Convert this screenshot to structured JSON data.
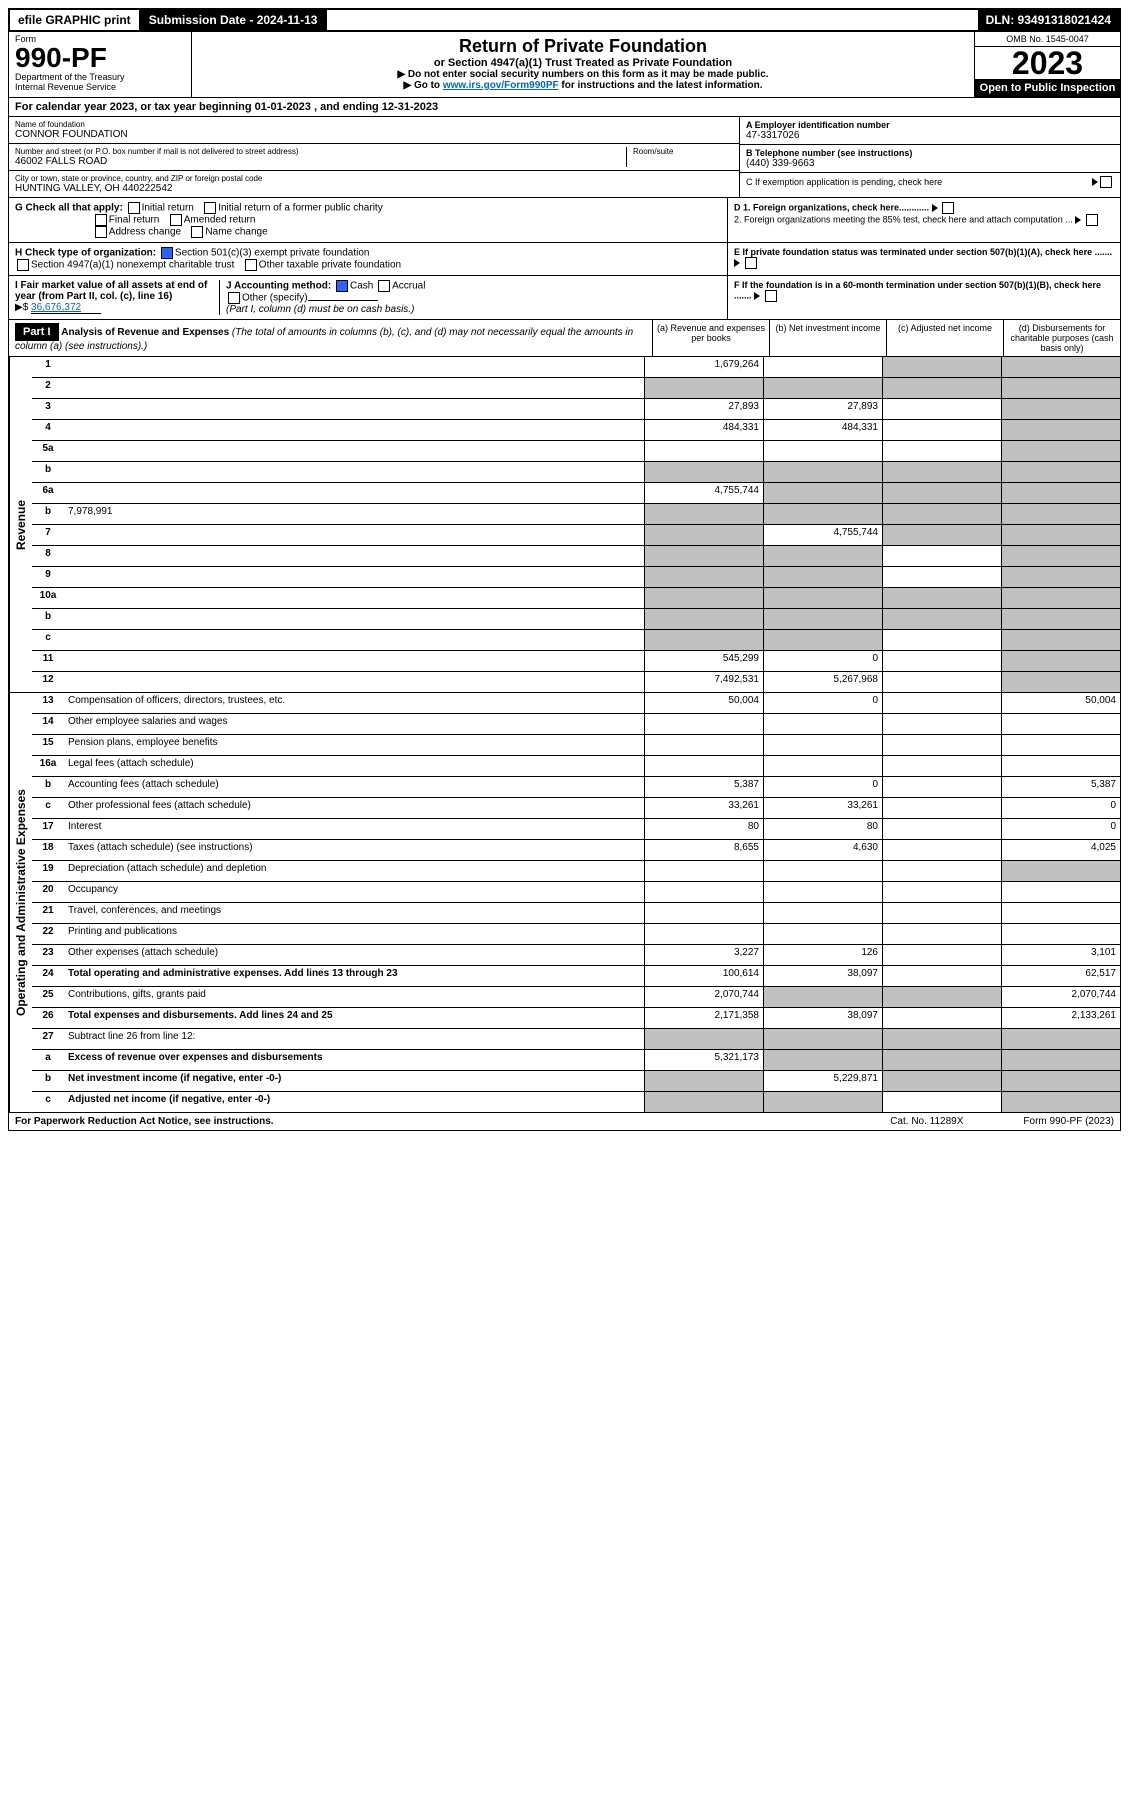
{
  "top": {
    "efile": "efile GRAPHIC print",
    "submission": "Submission Date - 2024-11-13",
    "dln": "DLN: 93491318021424"
  },
  "header": {
    "form_label": "Form",
    "form_no": "990-PF",
    "dept": "Department of the Treasury",
    "irs": "Internal Revenue Service",
    "title": "Return of Private Foundation",
    "subtitle": "or Section 4947(a)(1) Trust Treated as Private Foundation",
    "instr1": "▶ Do not enter social security numbers on this form as it may be made public.",
    "instr2_pre": "▶ Go to ",
    "instr2_link": "www.irs.gov/Form990PF",
    "instr2_post": " for instructions and the latest information.",
    "omb": "OMB No. 1545-0047",
    "year": "2023",
    "open": "Open to Public Inspection"
  },
  "period": "For calendar year 2023, or tax year beginning 01-01-2023           , and ending 12-31-2023",
  "entity": {
    "name_label": "Name of foundation",
    "name": "CONNOR FOUNDATION",
    "addr_label": "Number and street (or P.O. box number if mail is not delivered to street address)",
    "addr": "46002 FALLS ROAD",
    "room_label": "Room/suite",
    "city_label": "City or town, state or province, country, and ZIP or foreign postal code",
    "city": "HUNTING VALLEY, OH  440222542",
    "a_label": "A Employer identification number",
    "a_val": "47-3317026",
    "b_label": "B Telephone number (see instructions)",
    "b_val": "(440) 339-9663",
    "c_label": "C If exemption application is pending, check here"
  },
  "checks": {
    "g_label": "G Check all that apply:",
    "g_opts": [
      "Initial return",
      "Initial return of a former public charity",
      "Final return",
      "Amended return",
      "Address change",
      "Name change"
    ],
    "h_label": "H Check type of organization:",
    "h1": "Section 501(c)(3) exempt private foundation",
    "h2": "Section 4947(a)(1) nonexempt charitable trust",
    "h3": "Other taxable private foundation",
    "i_label": "I Fair market value of all assets at end of year (from Part II, col. (c), line 16)",
    "i_val": "36,676,372",
    "j_label": "J Accounting method:",
    "j1": "Cash",
    "j2": "Accrual",
    "j3": "Other (specify)",
    "j_note": "(Part I, column (d) must be on cash basis.)",
    "d1": "D 1. Foreign organizations, check here............",
    "d2": "2. Foreign organizations meeting the 85% test, check here and attach computation ...",
    "e": "E  If private foundation status was terminated under section 507(b)(1)(A), check here .......",
    "f": "F  If the foundation is in a 60-month termination under section 507(b)(1)(B), check here .......",
    "i_prefix": "▶$  "
  },
  "part1": {
    "label": "Part I",
    "title": "Analysis of Revenue and Expenses",
    "title_note": " (The total of amounts in columns (b), (c), and (d) may not necessarily equal the amounts in column (a) (see instructions).)",
    "col_a": "(a)   Revenue and expenses per books",
    "col_b": "(b)   Net investment income",
    "col_c": "(c)   Adjusted net income",
    "col_d": "(d)   Disbursements for charitable purposes (cash basis only)"
  },
  "sections": {
    "revenue": "Revenue",
    "expenses": "Operating and Administrative Expenses"
  },
  "lines": [
    {
      "n": "1",
      "d": "",
      "a": "1,679,264",
      "b": "",
      "c": "",
      "shaded": [
        "c",
        "d"
      ]
    },
    {
      "n": "2",
      "d": "",
      "a": "",
      "b": "",
      "c": "",
      "shaded": [
        "a",
        "b",
        "c",
        "d"
      ]
    },
    {
      "n": "3",
      "d": "",
      "a": "27,893",
      "b": "27,893",
      "c": "",
      "shaded": [
        "d"
      ]
    },
    {
      "n": "4",
      "d": "",
      "a": "484,331",
      "b": "484,331",
      "c": "",
      "shaded": [
        "d"
      ]
    },
    {
      "n": "5a",
      "d": "",
      "a": "",
      "b": "",
      "c": "",
      "shaded": [
        "d"
      ]
    },
    {
      "n": "b",
      "d": "",
      "a": "",
      "b": "",
      "c": "",
      "shaded": [
        "a",
        "b",
        "c",
        "d"
      ],
      "inline": true
    },
    {
      "n": "6a",
      "d": "",
      "a": "4,755,744",
      "b": "",
      "c": "",
      "shaded": [
        "b",
        "c",
        "d"
      ]
    },
    {
      "n": "b",
      "d": "",
      "inline_val": "7,978,991",
      "a": "",
      "b": "",
      "c": "",
      "shaded": [
        "a",
        "b",
        "c",
        "d"
      ]
    },
    {
      "n": "7",
      "d": "",
      "a": "",
      "b": "4,755,744",
      "c": "",
      "shaded": [
        "a",
        "c",
        "d"
      ]
    },
    {
      "n": "8",
      "d": "",
      "a": "",
      "b": "",
      "c": "",
      "shaded": [
        "a",
        "b",
        "d"
      ]
    },
    {
      "n": "9",
      "d": "",
      "a": "",
      "b": "",
      "c": "",
      "shaded": [
        "a",
        "b",
        "d"
      ]
    },
    {
      "n": "10a",
      "d": "",
      "a": "",
      "b": "",
      "c": "",
      "shaded": [
        "a",
        "b",
        "c",
        "d"
      ],
      "inline": true
    },
    {
      "n": "b",
      "d": "",
      "a": "",
      "b": "",
      "c": "",
      "shaded": [
        "a",
        "b",
        "c",
        "d"
      ],
      "inline": true
    },
    {
      "n": "c",
      "d": "",
      "a": "",
      "b": "",
      "c": "",
      "shaded": [
        "a",
        "b",
        "d"
      ]
    },
    {
      "n": "11",
      "d": "",
      "a": "545,299",
      "b": "0",
      "c": "",
      "shaded": [
        "d"
      ]
    },
    {
      "n": "12",
      "d": "",
      "a": "7,492,531",
      "b": "5,267,968",
      "c": "",
      "bold": true,
      "shaded": [
        "d"
      ]
    }
  ],
  "exp_lines": [
    {
      "n": "13",
      "d": "Compensation of officers, directors, trustees, etc.",
      "a": "50,004",
      "b": "0",
      "c": "",
      "dd": "50,004"
    },
    {
      "n": "14",
      "d": "Other employee salaries and wages",
      "a": "",
      "b": "",
      "c": "",
      "dd": ""
    },
    {
      "n": "15",
      "d": "Pension plans, employee benefits",
      "a": "",
      "b": "",
      "c": "",
      "dd": ""
    },
    {
      "n": "16a",
      "d": "Legal fees (attach schedule)",
      "a": "",
      "b": "",
      "c": "",
      "dd": ""
    },
    {
      "n": "b",
      "d": "Accounting fees (attach schedule)",
      "a": "5,387",
      "b": "0",
      "c": "",
      "dd": "5,387"
    },
    {
      "n": "c",
      "d": "Other professional fees (attach schedule)",
      "a": "33,261",
      "b": "33,261",
      "c": "",
      "dd": "0"
    },
    {
      "n": "17",
      "d": "Interest",
      "a": "80",
      "b": "80",
      "c": "",
      "dd": "0"
    },
    {
      "n": "18",
      "d": "Taxes (attach schedule) (see instructions)",
      "a": "8,655",
      "b": "4,630",
      "c": "",
      "dd": "4,025"
    },
    {
      "n": "19",
      "d": "Depreciation (attach schedule) and depletion",
      "a": "",
      "b": "",
      "c": "",
      "dd": "",
      "shaded": [
        "dd"
      ]
    },
    {
      "n": "20",
      "d": "Occupancy",
      "a": "",
      "b": "",
      "c": "",
      "dd": ""
    },
    {
      "n": "21",
      "d": "Travel, conferences, and meetings",
      "a": "",
      "b": "",
      "c": "",
      "dd": ""
    },
    {
      "n": "22",
      "d": "Printing and publications",
      "a": "",
      "b": "",
      "c": "",
      "dd": ""
    },
    {
      "n": "23",
      "d": "Other expenses (attach schedule)",
      "a": "3,227",
      "b": "126",
      "c": "",
      "dd": "3,101"
    },
    {
      "n": "24",
      "d": "Total operating and administrative expenses. Add lines 13 through 23",
      "a": "100,614",
      "b": "38,097",
      "c": "",
      "dd": "62,517",
      "bold": true
    },
    {
      "n": "25",
      "d": "Contributions, gifts, grants paid",
      "a": "2,070,744",
      "b": "",
      "c": "",
      "dd": "2,070,744",
      "shaded": [
        "b",
        "c"
      ]
    },
    {
      "n": "26",
      "d": "Total expenses and disbursements. Add lines 24 and 25",
      "a": "2,171,358",
      "b": "38,097",
      "c": "",
      "dd": "2,133,261",
      "bold": true
    },
    {
      "n": "27",
      "d": "Subtract line 26 from line 12:",
      "a": "",
      "b": "",
      "c": "",
      "dd": "",
      "shaded": [
        "a",
        "b",
        "c",
        "dd"
      ]
    },
    {
      "n": "a",
      "d": "Excess of revenue over expenses and disbursements",
      "a": "5,321,173",
      "b": "",
      "c": "",
      "dd": "",
      "bold": true,
      "shaded": [
        "b",
        "c",
        "dd"
      ]
    },
    {
      "n": "b",
      "d": "Net investment income (if negative, enter -0-)",
      "a": "",
      "b": "5,229,871",
      "c": "",
      "dd": "",
      "bold": true,
      "shaded": [
        "a",
        "c",
        "dd"
      ]
    },
    {
      "n": "c",
      "d": "Adjusted net income (if negative, enter -0-)",
      "a": "",
      "b": "",
      "c": "",
      "dd": "",
      "bold": true,
      "shaded": [
        "a",
        "b",
        "dd"
      ]
    }
  ],
  "footer": {
    "left": "For Paperwork Reduction Act Notice, see instructions.",
    "cat": "Cat. No. 11289X",
    "right": "Form 990-PF (2023)"
  }
}
